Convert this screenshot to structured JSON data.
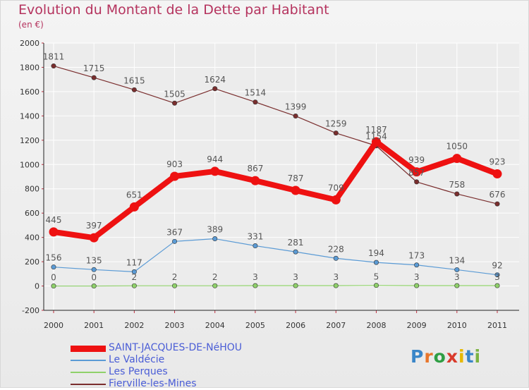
{
  "colors": {
    "title": "#b5335e",
    "legend_text": "#4a5dd6",
    "axis": "#333333",
    "grid": "#ffffff",
    "value_label": "#555555"
  },
  "logo": {
    "letters": [
      "P",
      "r",
      "o",
      "x",
      "i",
      "t",
      "i"
    ],
    "letter_colors": [
      "#3a86c8",
      "#e8762b",
      "#2f9e44",
      "#d93a2b",
      "#e6b800",
      "#3a86c8",
      "#7cb342"
    ]
  },
  "chart_data": {
    "type": "line",
    "title": "Evolution du Montant de la Dette par Habitant",
    "subtitle": "(en €)",
    "xlabel": "",
    "ylabel": "",
    "ylim": [
      -200,
      2000
    ],
    "yticks": [
      -200,
      0,
      200,
      400,
      600,
      800,
      1000,
      1200,
      1400,
      1600,
      1800,
      2000
    ],
    "grid": true,
    "legend_position": "bottom-left",
    "x": [
      "2000",
      "2001",
      "2002",
      "2003",
      "2004",
      "2005",
      "2006",
      "2007",
      "2008",
      "2009",
      "2010",
      "2011"
    ],
    "series": [
      {
        "name": "Fierville-les-Mines",
        "color": "#7a2e2e",
        "values": [
          1811,
          1715,
          1615,
          1505,
          1624,
          1514,
          1399,
          1259,
          1154,
          857,
          758,
          676
        ],
        "labels": [
          "1811",
          "1715",
          "1615",
          "1505",
          "1624",
          "1514",
          "1399",
          "1259",
          "1154",
          "857",
          "758",
          "676"
        ]
      },
      {
        "name": "Les Perques",
        "color": "#8fd16a",
        "values": [
          0,
          0,
          2,
          2,
          2,
          3,
          3,
          3,
          5,
          3,
          3,
          3
        ],
        "labels": [
          "0",
          "0",
          "2",
          "2",
          "2",
          "3",
          "3",
          "3",
          "5",
          "3",
          "3",
          "3"
        ]
      },
      {
        "name": "Le Valdécie",
        "color": "#5b9bd5",
        "values": [
          156,
          135,
          117,
          367,
          389,
          331,
          281,
          228,
          194,
          173,
          134,
          92
        ],
        "labels": [
          "156",
          "135",
          "117",
          "367",
          "389",
          "331",
          "281",
          "228",
          "194",
          "173",
          "134",
          "92"
        ]
      },
      {
        "name": "SAINT-JACQUES-DE-NéHOU",
        "color": "#ee1111",
        "values": [
          445,
          397,
          651,
          903,
          944,
          867,
          787,
          709,
          1187,
          939,
          1050,
          923
        ],
        "labels": [
          "445",
          "397",
          "651",
          "903",
          "944",
          "867",
          "787",
          "709",
          "1187",
          "939",
          "1050",
          "923"
        ]
      }
    ],
    "legend_order": [
      "SAINT-JACQUES-DE-NéHOU",
      "Le Valdécie",
      "Les Perques",
      "Fierville-les-Mines"
    ]
  }
}
